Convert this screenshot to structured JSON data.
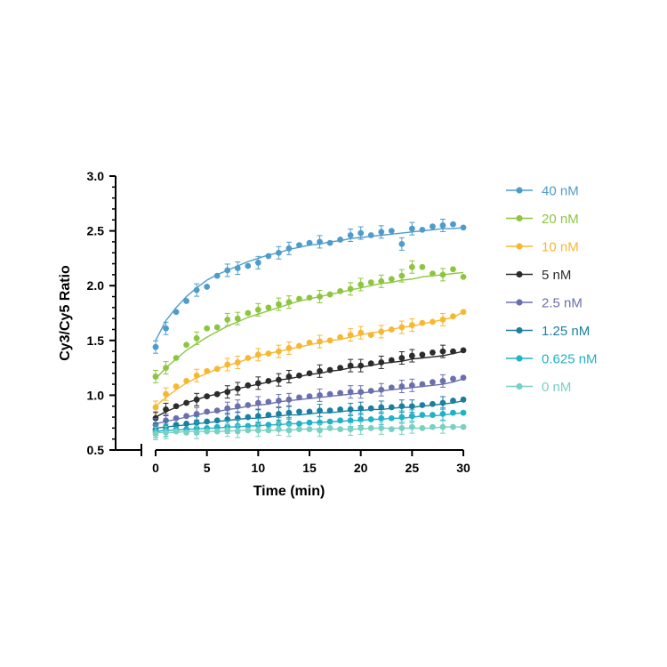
{
  "chart_data": {
    "type": "scatter",
    "title": "",
    "xlabel": "Time (min)",
    "ylabel": "Cy3/Cy5 Ratio",
    "xlim": [
      0,
      30
    ],
    "ylim": [
      0.5,
      3.0
    ],
    "x_ticks": [
      "0",
      "5",
      "10",
      "15",
      "20",
      "25",
      "30"
    ],
    "y_ticks": [
      "0.5",
      "1.0",
      "1.5",
      "2.0",
      "2.5",
      "3.0"
    ],
    "grid": false,
    "legend_position": "right",
    "x": [
      0,
      1,
      2,
      3,
      4,
      5,
      6,
      7,
      8,
      9,
      10,
      11,
      12,
      13,
      14,
      15,
      16,
      17,
      18,
      19,
      20,
      21,
      22,
      23,
      24,
      25,
      26,
      27,
      28,
      29,
      30
    ],
    "series": [
      {
        "name": "40 nM",
        "color": "#4f9ccb",
        "values": [
          1.44,
          1.61,
          1.76,
          1.86,
          1.96,
          1.99,
          2.09,
          2.14,
          2.16,
          2.18,
          2.21,
          2.27,
          2.3,
          2.34,
          2.37,
          2.39,
          2.4,
          2.39,
          2.42,
          2.46,
          2.48,
          2.46,
          2.49,
          2.5,
          2.38,
          2.52,
          2.51,
          2.54,
          2.55,
          2.56,
          2.53
        ],
        "fit": [
          1.5,
          1.68,
          1.8,
          1.9,
          1.98,
          2.05,
          2.1,
          2.14,
          2.18,
          2.22,
          2.25,
          2.28,
          2.3,
          2.33,
          2.35,
          2.37,
          2.38,
          2.4,
          2.41,
          2.43,
          2.44,
          2.45,
          2.46,
          2.47,
          2.48,
          2.49,
          2.5,
          2.51,
          2.52,
          2.52,
          2.53
        ]
      },
      {
        "name": "20 nM",
        "color": "#8cc63f",
        "values": [
          1.17,
          1.25,
          1.34,
          1.46,
          1.52,
          1.61,
          1.62,
          1.69,
          1.7,
          1.75,
          1.78,
          1.8,
          1.83,
          1.85,
          1.88,
          1.89,
          1.9,
          1.92,
          1.95,
          1.97,
          2.01,
          2.03,
          2.04,
          2.06,
          2.09,
          2.17,
          2.17,
          2.11,
          2.1,
          2.15,
          2.08
        ],
        "fit": [
          1.15,
          1.25,
          1.33,
          1.41,
          1.47,
          1.53,
          1.58,
          1.63,
          1.67,
          1.71,
          1.74,
          1.77,
          1.8,
          1.83,
          1.86,
          1.88,
          1.9,
          1.92,
          1.94,
          1.96,
          1.98,
          2.0,
          2.02,
          2.03,
          2.05,
          2.06,
          2.08,
          2.09,
          2.1,
          2.11,
          2.12
        ]
      },
      {
        "name": "10 nM",
        "color": "#f7b731",
        "values": [
          0.89,
          1.01,
          1.08,
          1.13,
          1.18,
          1.22,
          1.24,
          1.28,
          1.3,
          1.34,
          1.37,
          1.38,
          1.4,
          1.43,
          1.45,
          1.48,
          1.49,
          1.5,
          1.53,
          1.55,
          1.57,
          1.55,
          1.58,
          1.6,
          1.62,
          1.64,
          1.66,
          1.67,
          1.69,
          1.72,
          1.76
        ],
        "fit": [
          0.9,
          0.98,
          1.05,
          1.11,
          1.16,
          1.2,
          1.24,
          1.27,
          1.3,
          1.33,
          1.36,
          1.38,
          1.4,
          1.42,
          1.44,
          1.46,
          1.48,
          1.5,
          1.51,
          1.53,
          1.55,
          1.57,
          1.58,
          1.6,
          1.62,
          1.63,
          1.65,
          1.67,
          1.69,
          1.71,
          1.76
        ]
      },
      {
        "name": "5 nM",
        "color": "#2b2b2b",
        "values": [
          0.79,
          0.87,
          0.9,
          0.93,
          0.96,
          0.99,
          1.01,
          1.03,
          1.06,
          1.09,
          1.11,
          1.13,
          1.14,
          1.17,
          1.18,
          1.2,
          1.22,
          1.23,
          1.25,
          1.27,
          1.27,
          1.29,
          1.3,
          1.32,
          1.34,
          1.36,
          1.37,
          1.39,
          1.4,
          1.4,
          1.41
        ],
        "fit": [
          0.8,
          0.85,
          0.89,
          0.93,
          0.96,
          0.99,
          1.01,
          1.04,
          1.06,
          1.08,
          1.1,
          1.12,
          1.14,
          1.15,
          1.17,
          1.19,
          1.2,
          1.22,
          1.23,
          1.25,
          1.26,
          1.27,
          1.29,
          1.3,
          1.31,
          1.33,
          1.34,
          1.35,
          1.36,
          1.38,
          1.4
        ]
      },
      {
        "name": "2.5 nM",
        "color": "#6a70ad",
        "values": [
          0.73,
          0.77,
          0.79,
          0.81,
          0.83,
          0.85,
          0.86,
          0.88,
          0.9,
          0.91,
          0.93,
          0.94,
          0.95,
          0.96,
          0.98,
          0.99,
          1.0,
          1.01,
          1.02,
          1.03,
          1.03,
          1.04,
          1.05,
          1.07,
          1.08,
          1.09,
          1.1,
          1.12,
          1.13,
          1.15,
          1.16
        ],
        "fit": [
          0.74,
          0.76,
          0.78,
          0.8,
          0.82,
          0.84,
          0.85,
          0.87,
          0.88,
          0.9,
          0.91,
          0.92,
          0.94,
          0.95,
          0.96,
          0.97,
          0.98,
          0.99,
          1.0,
          1.01,
          1.02,
          1.03,
          1.04,
          1.05,
          1.06,
          1.07,
          1.08,
          1.09,
          1.1,
          1.12,
          1.15
        ]
      },
      {
        "name": "1.25 nM",
        "color": "#1b7fa0",
        "values": [
          0.69,
          0.71,
          0.73,
          0.74,
          0.75,
          0.76,
          0.77,
          0.78,
          0.79,
          0.8,
          0.81,
          0.82,
          0.83,
          0.84,
          0.85,
          0.85,
          0.86,
          0.86,
          0.87,
          0.87,
          0.88,
          0.88,
          0.89,
          0.89,
          0.9,
          0.9,
          0.91,
          0.92,
          0.93,
          0.95,
          0.96
        ],
        "fit": [
          0.7,
          0.71,
          0.72,
          0.73,
          0.74,
          0.75,
          0.76,
          0.77,
          0.78,
          0.79,
          0.79,
          0.8,
          0.81,
          0.82,
          0.82,
          0.83,
          0.84,
          0.84,
          0.85,
          0.86,
          0.86,
          0.87,
          0.87,
          0.88,
          0.89,
          0.89,
          0.9,
          0.91,
          0.92,
          0.93,
          0.95
        ]
      },
      {
        "name": "0.625 nM",
        "color": "#20b2c8",
        "values": [
          0.67,
          0.68,
          0.69,
          0.69,
          0.7,
          0.7,
          0.71,
          0.71,
          0.72,
          0.72,
          0.73,
          0.73,
          0.74,
          0.74,
          0.74,
          0.75,
          0.75,
          0.76,
          0.77,
          0.77,
          0.78,
          0.78,
          0.79,
          0.79,
          0.8,
          0.81,
          0.82,
          0.82,
          0.83,
          0.84,
          0.84
        ],
        "fit": [
          0.67,
          0.68,
          0.68,
          0.69,
          0.69,
          0.7,
          0.7,
          0.71,
          0.71,
          0.72,
          0.72,
          0.73,
          0.73,
          0.74,
          0.74,
          0.75,
          0.75,
          0.76,
          0.76,
          0.77,
          0.77,
          0.78,
          0.78,
          0.79,
          0.79,
          0.8,
          0.81,
          0.81,
          0.82,
          0.83,
          0.84
        ]
      },
      {
        "name": "0 nM",
        "color": "#79d0c3",
        "values": [
          0.65,
          0.66,
          0.67,
          0.66,
          0.66,
          0.67,
          0.67,
          0.68,
          0.67,
          0.68,
          0.68,
          0.68,
          0.69,
          0.68,
          0.69,
          0.69,
          0.68,
          0.7,
          0.69,
          0.69,
          0.7,
          0.7,
          0.7,
          0.69,
          0.7,
          0.71,
          0.7,
          0.71,
          0.71,
          0.71,
          0.71
        ],
        "fit": [
          0.66,
          0.66,
          0.66,
          0.67,
          0.67,
          0.67,
          0.67,
          0.67,
          0.68,
          0.68,
          0.68,
          0.68,
          0.68,
          0.68,
          0.69,
          0.69,
          0.69,
          0.69,
          0.69,
          0.69,
          0.69,
          0.7,
          0.7,
          0.7,
          0.7,
          0.7,
          0.7,
          0.7,
          0.71,
          0.71,
          0.71
        ]
      }
    ]
  }
}
